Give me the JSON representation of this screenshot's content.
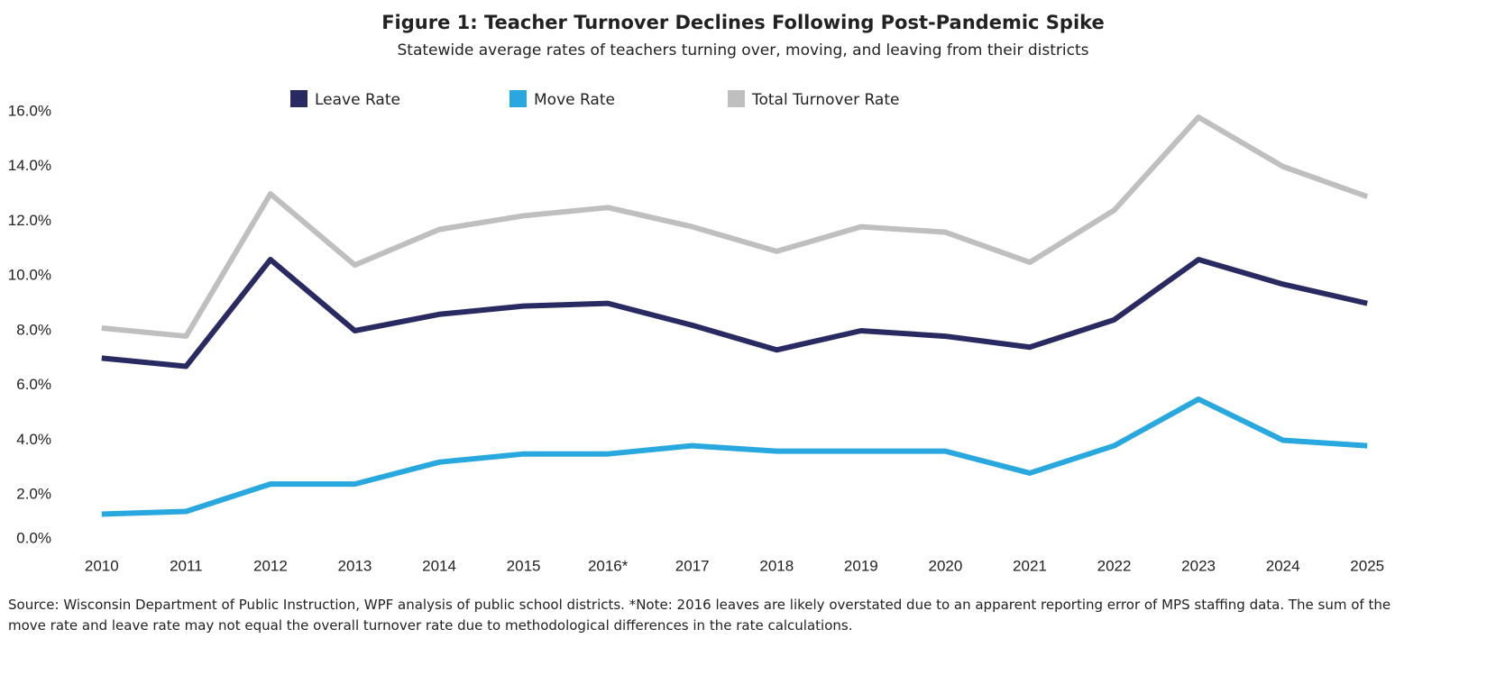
{
  "chart_data": {
    "type": "line",
    "title": "Figure 1:  Teacher Turnover Declines Following Post-Pandemic Spike",
    "subtitle": "Statewide average rates of teachers turning over, moving, and leaving from their districts",
    "categories": [
      "2010",
      "2011",
      "2012",
      "2013",
      "2014",
      "2015",
      "2016*",
      "2017",
      "2018",
      "2019",
      "2020",
      "2021",
      "2022",
      "2023",
      "2024",
      "2025"
    ],
    "series": [
      {
        "name": "Leave Rate",
        "color": "#2a2a63",
        "values": [
          7.0,
          6.7,
          10.6,
          8.0,
          8.6,
          8.9,
          9.0,
          8.2,
          7.3,
          8.0,
          7.8,
          7.4,
          8.4,
          10.6,
          9.7,
          9.0
        ]
      },
      {
        "name": "Move Rate",
        "color": "#29a8e0",
        "values": [
          1.3,
          1.4,
          2.4,
          2.4,
          3.2,
          3.5,
          3.5,
          3.8,
          3.6,
          3.6,
          3.6,
          2.8,
          3.8,
          5.5,
          4.0,
          3.8
        ]
      },
      {
        "name": "Total Turnover Rate",
        "color": "#bfbfbf",
        "values": [
          8.1,
          7.8,
          13.0,
          10.4,
          11.7,
          12.2,
          12.5,
          11.8,
          10.9,
          11.8,
          11.6,
          10.5,
          12.4,
          15.8,
          14.0,
          12.9
        ]
      }
    ],
    "ylim": [
      0,
      16
    ],
    "yticks": [
      {
        "value": 0,
        "label": "0.0%"
      },
      {
        "value": 2,
        "label": "2.0%"
      },
      {
        "value": 4,
        "label": "4.0%"
      },
      {
        "value": 6,
        "label": "6.0%"
      },
      {
        "value": 8,
        "label": "8.0%"
      },
      {
        "value": 10,
        "label": "10.0%"
      },
      {
        "value": 12,
        "label": "12.0%"
      },
      {
        "value": 14,
        "label": "14.0%"
      },
      {
        "value": 16,
        "label": "16.0%"
      }
    ],
    "grid": false,
    "legend_position": "top",
    "source": "Source:  Wisconsin Department of Public Instruction, WPF analysis of public school districts. *Note: 2016 leaves are likely overstated due to an apparent reporting error of MPS staffing data. The sum of the move rate and leave rate may not equal the overall turnover rate due to methodological differences in the rate calculations."
  }
}
